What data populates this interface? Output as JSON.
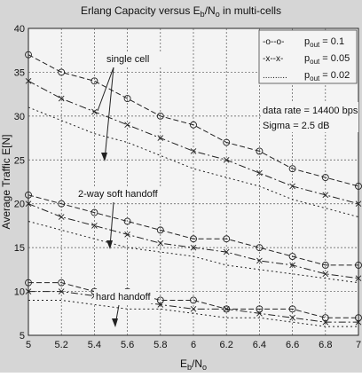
{
  "chart_data": {
    "type": "line",
    "title": "Erlang Capacity versus E",
    "title_sub1": "b",
    "title_mid": "/N",
    "title_sub2": "o",
    "title_end": " in multi-cells",
    "xlabel": "E",
    "xlabel_sub1": "b",
    "xlabel_mid": "/N",
    "xlabel_sub2": "o",
    "ylabel": "Average Traffic E[N]",
    "xlim": [
      5,
      7
    ],
    "ylim": [
      5,
      40
    ],
    "grid": true,
    "x_ticks": [
      5,
      5.2,
      5.4,
      5.6,
      5.8,
      6,
      6.2,
      6.4,
      6.6,
      6.8,
      7
    ],
    "x_tick_labels": [
      "5",
      "5.2",
      "5.4",
      "5.6",
      "5.8",
      "6",
      "6.2",
      "6.4",
      "6.6",
      "6.8",
      "7"
    ],
    "y_ticks": [
      5,
      10,
      15,
      20,
      25,
      30,
      35,
      40
    ],
    "y_tick_labels": [
      "5",
      "10",
      "15",
      "20",
      "25",
      "30",
      "35",
      "40"
    ],
    "legend_position": "top-right",
    "legend": [
      {
        "marker_text": "-o--o-",
        "label": "p",
        "sub": "out",
        "value": " = 0.1"
      },
      {
        "marker_text": "-x--x-",
        "label": "p",
        "sub": "out",
        "value": " = 0.05"
      },
      {
        "marker_text": "..........",
        "label": "p",
        "sub": "out",
        "value": " = 0.02"
      }
    ],
    "annotations": {
      "single_cell": "single cell",
      "soft_handoff": "2-way soft handoff",
      "hard_handoff": "hard handoff",
      "data_rate": "data rate = 14400 bps",
      "sigma": "Sigma = 2.5 dB"
    },
    "x": [
      5,
      5.2,
      5.4,
      5.6,
      5.8,
      6,
      6.2,
      6.4,
      6.6,
      6.8,
      7
    ],
    "series": [
      {
        "group": "single cell",
        "style": "o",
        "values": [
          37,
          35,
          34,
          32,
          30,
          29,
          27,
          26,
          24,
          23,
          22
        ]
      },
      {
        "group": "single cell",
        "style": "x",
        "values": [
          34,
          32,
          30.5,
          29,
          27.5,
          26,
          25,
          23.5,
          22,
          21,
          20
        ]
      },
      {
        "group": "single cell",
        "style": "dot",
        "values": [
          31,
          29.5,
          28,
          27,
          25.5,
          24,
          23,
          22,
          20.5,
          19.5,
          18.5
        ]
      },
      {
        "group": "2-way soft handoff",
        "style": "o",
        "values": [
          21,
          20,
          19,
          18,
          17,
          16,
          16,
          15,
          14,
          13,
          13
        ]
      },
      {
        "group": "2-way soft handoff",
        "style": "x",
        "values": [
          20,
          18.5,
          17.5,
          16.5,
          15.5,
          15,
          14.5,
          13.5,
          13,
          12,
          11.5
        ]
      },
      {
        "group": "2-way soft handoff",
        "style": "dot",
        "values": [
          18,
          17,
          16,
          15,
          14.5,
          14,
          13,
          12.5,
          12,
          11.5,
          11
        ]
      },
      {
        "group": "hard handoff",
        "style": "o",
        "values": [
          11,
          11,
          10,
          10,
          9,
          9,
          8,
          8,
          8,
          7,
          7
        ]
      },
      {
        "group": "hard handoff",
        "style": "x",
        "values": [
          10,
          10,
          9.5,
          9,
          8.5,
          8,
          8,
          7.5,
          7,
          6.5,
          6.5
        ]
      },
      {
        "group": "hard handoff",
        "style": "dot",
        "values": [
          9,
          9,
          8.5,
          8,
          8,
          7.5,
          7,
          7,
          6.5,
          6,
          6
        ]
      }
    ]
  }
}
